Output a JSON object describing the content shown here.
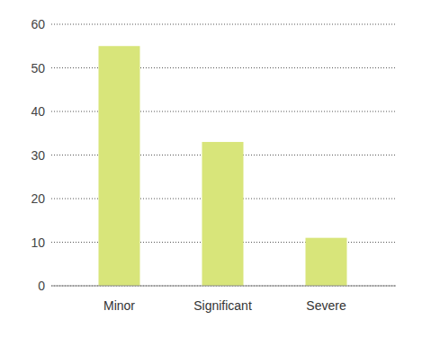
{
  "chart_data": {
    "type": "bar",
    "categories": [
      "Minor",
      "Significant",
      "Severe"
    ],
    "values": [
      55,
      33,
      11
    ],
    "color": "#d8e57a",
    "ylim": [
      0,
      60
    ],
    "yticks": [
      0,
      10,
      20,
      30,
      40,
      50,
      60
    ],
    "grid": true
  }
}
